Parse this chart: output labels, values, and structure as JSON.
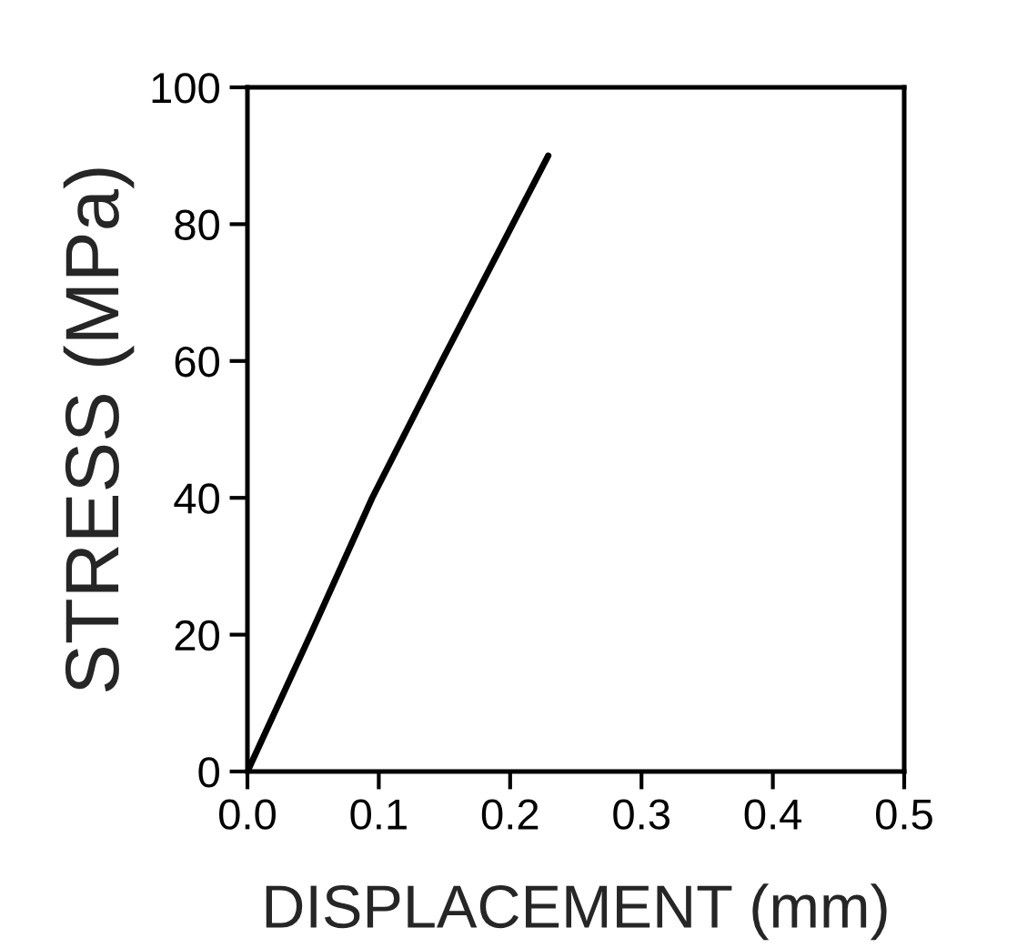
{
  "chart_data": {
    "type": "line",
    "xlabel": "DISPLACEMENT (mm)",
    "ylabel": "STRESS (MPa)",
    "x": [
      0,
      0.048,
      0.095,
      0.148,
      0.202,
      0.229
    ],
    "series": [
      {
        "color": "#000000",
        "values": [
          0,
          20,
          40,
          60,
          80,
          90
        ]
      }
    ],
    "xlim": [
      0,
      0.5
    ],
    "ylim": [
      0,
      100
    ],
    "xticks": [
      {
        "value": 0,
        "label": "0.0"
      },
      0.1,
      0.2,
      0.3,
      0.4,
      0.5
    ],
    "yticks": [
      0,
      20,
      40,
      60,
      80,
      100
    ],
    "grid": false,
    "legend": false,
    "marker": "none",
    "line_style": "solid"
  }
}
